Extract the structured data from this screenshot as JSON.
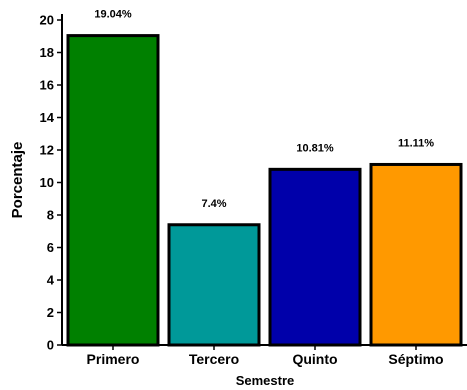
{
  "chart_data": {
    "type": "bar",
    "categories": [
      "Primero",
      "Tercero",
      "Quinto",
      "Séptimo"
    ],
    "values": [
      19.04,
      7.4,
      10.81,
      11.11
    ],
    "data_labels": [
      "19.04%",
      "7.4%",
      "10.81%",
      "11.11%"
    ],
    "colors": [
      "#008000",
      "#009999",
      "#0000aa",
      "#ff9900"
    ],
    "xlabel": "Semestre",
    "ylabel": "Porcentaje",
    "ylim": [
      0,
      20
    ],
    "yticks": [
      0,
      2,
      4,
      6,
      8,
      10,
      12,
      14,
      16,
      18,
      20
    ],
    "grid": false,
    "legend": "none"
  }
}
